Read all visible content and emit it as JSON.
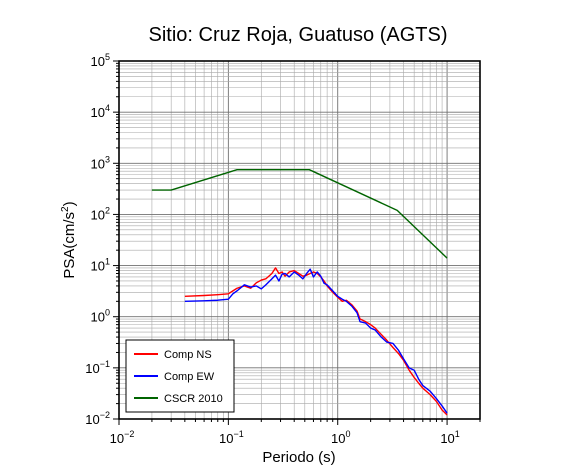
{
  "chart_data": {
    "type": "line",
    "title": "Sitio: Cruz Roja, Guatuso (AGTS)",
    "xlabel": "Periodo (s)",
    "ylabel_main": "PSA(cm/s",
    "ylabel_sup": "2",
    "ylabel_tail": ")",
    "xscale": "log",
    "yscale": "log",
    "xlim": [
      0.01,
      20
    ],
    "ylim": [
      0.01,
      100000
    ],
    "grid": true,
    "legend_position": "bottom-left",
    "x_ticks": [
      {
        "value": 0.01,
        "base": "10",
        "exp": "−2"
      },
      {
        "value": 0.1,
        "base": "10",
        "exp": "−1"
      },
      {
        "value": 1,
        "base": "10",
        "exp": "0"
      },
      {
        "value": 10,
        "base": "10",
        "exp": "1"
      }
    ],
    "y_ticks": [
      {
        "value": 0.01,
        "base": "10",
        "exp": "−2"
      },
      {
        "value": 0.1,
        "base": "10",
        "exp": "−1"
      },
      {
        "value": 1,
        "base": "10",
        "exp": "0"
      },
      {
        "value": 10,
        "base": "10",
        "exp": "1"
      },
      {
        "value": 100,
        "base": "10",
        "exp": "2"
      },
      {
        "value": 1000,
        "base": "10",
        "exp": "3"
      },
      {
        "value": 10000,
        "base": "10",
        "exp": "4"
      },
      {
        "value": 100000,
        "base": "10",
        "exp": "5"
      }
    ],
    "series": [
      {
        "name": "Comp NS",
        "color": "#ff0000",
        "x": [
          0.04,
          0.06,
          0.08,
          0.1,
          0.11,
          0.12,
          0.14,
          0.16,
          0.18,
          0.2,
          0.22,
          0.25,
          0.27,
          0.29,
          0.31,
          0.33,
          0.36,
          0.4,
          0.44,
          0.48,
          0.52,
          0.56,
          0.6,
          0.65,
          0.7,
          0.75,
          0.8,
          0.9,
          1.0,
          1.1,
          1.2,
          1.35,
          1.5,
          1.6,
          1.8,
          2.0,
          2.2,
          2.5,
          2.8,
          3.2,
          3.6,
          4.0,
          4.5,
          5.0,
          5.5,
          6.0,
          7.0,
          8.0,
          9.0,
          10.0
        ],
        "y": [
          2.5,
          2.6,
          2.7,
          2.8,
          3.2,
          3.6,
          4.0,
          3.6,
          4.6,
          5.2,
          5.5,
          7.0,
          9.0,
          7.0,
          7.5,
          6.2,
          7.5,
          8.0,
          7.0,
          6.2,
          6.5,
          7.0,
          7.5,
          7.0,
          6.0,
          5.0,
          4.0,
          3.0,
          2.4,
          2.0,
          2.1,
          1.7,
          1.3,
          0.9,
          0.8,
          0.7,
          0.6,
          0.45,
          0.35,
          0.25,
          0.19,
          0.14,
          0.09,
          0.065,
          0.05,
          0.04,
          0.03,
          0.022,
          0.015,
          0.012
        ]
      },
      {
        "name": "Comp EW",
        "color": "#0000ff",
        "x": [
          0.04,
          0.06,
          0.08,
          0.1,
          0.11,
          0.12,
          0.14,
          0.16,
          0.18,
          0.2,
          0.22,
          0.25,
          0.27,
          0.29,
          0.31,
          0.33,
          0.36,
          0.4,
          0.44,
          0.48,
          0.52,
          0.56,
          0.6,
          0.65,
          0.7,
          0.75,
          0.8,
          0.9,
          1.0,
          1.1,
          1.2,
          1.35,
          1.5,
          1.6,
          1.8,
          2.0,
          2.2,
          2.5,
          2.8,
          3.2,
          3.6,
          4.0,
          4.5,
          5.0,
          5.5,
          6.0,
          7.0,
          8.0,
          9.0,
          10.0
        ],
        "y": [
          2.0,
          2.05,
          2.1,
          2.2,
          2.8,
          3.2,
          4.2,
          3.8,
          4.0,
          3.5,
          4.2,
          5.5,
          6.5,
          5.0,
          6.8,
          7.0,
          6.0,
          7.5,
          6.5,
          5.5,
          7.0,
          8.5,
          6.0,
          7.5,
          6.2,
          4.5,
          4.2,
          3.2,
          2.5,
          2.2,
          2.0,
          1.6,
          1.2,
          0.8,
          0.75,
          0.6,
          0.55,
          0.4,
          0.32,
          0.3,
          0.22,
          0.15,
          0.1,
          0.09,
          0.06,
          0.045,
          0.035,
          0.025,
          0.018,
          0.013
        ]
      },
      {
        "name": "CSCR 2010",
        "color": "#006400",
        "x": [
          0.02,
          0.03,
          0.12,
          0.55,
          3.5,
          10.0
        ],
        "y": [
          300,
          300,
          750,
          750,
          120,
          14
        ]
      }
    ]
  }
}
